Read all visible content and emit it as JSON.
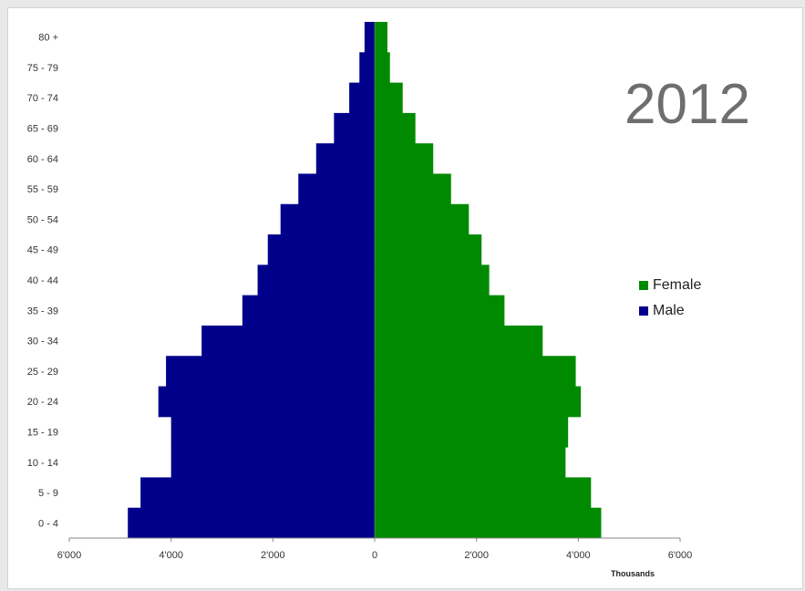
{
  "chart_data": {
    "type": "bar",
    "orientation": "horizontal-population-pyramid",
    "title": "2012",
    "xlabel": "Thousands",
    "xlim": [
      -6000,
      6000
    ],
    "x_tick_values": [
      -6000,
      -4000,
      -2000,
      0,
      2000,
      4000,
      6000
    ],
    "x_tick_labels": [
      "6'000",
      "4'000",
      "2'000",
      "0",
      "2'000",
      "4'000",
      "6'000"
    ],
    "categories": [
      "0 - 4",
      "5 - 9",
      "10 - 14",
      "15 - 19",
      "20 - 24",
      "25 - 29",
      "30 - 34",
      "35 - 39",
      "40 - 44",
      "45 - 49",
      "50 - 54",
      "55 - 59",
      "60 - 64",
      "65 - 69",
      "70 - 74",
      "75 - 79",
      "80 +"
    ],
    "series": [
      {
        "name": "Male",
        "color": "#00008b",
        "values": [
          4850,
          4600,
          4000,
          4000,
          4250,
          4100,
          3400,
          2600,
          2300,
          2100,
          1850,
          1500,
          1150,
          800,
          500,
          300,
          200
        ]
      },
      {
        "name": "Female",
        "color": "#008a00",
        "values": [
          4450,
          4250,
          3750,
          3800,
          4050,
          3950,
          3300,
          2550,
          2250,
          2100,
          1850,
          1500,
          1150,
          800,
          550,
          300,
          250
        ]
      }
    ],
    "legend_position": "right",
    "legend_order": [
      "Female",
      "Male"
    ],
    "grid": false
  }
}
